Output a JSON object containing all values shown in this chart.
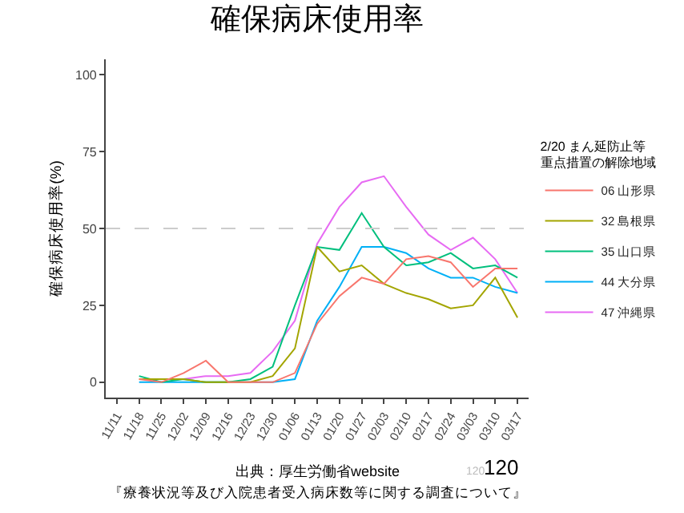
{
  "chart_data": {
    "type": "line",
    "title": "確保病床使用率",
    "ylabel": "確保病床使用率(%)",
    "legend_title": "2/20 まん延防止等重点措置の解除地域",
    "categories": [
      "11/11",
      "11/18",
      "11/25",
      "12/02",
      "12/09",
      "12/16",
      "12/23",
      "12/30",
      "01/06",
      "01/13",
      "01/20",
      "01/27",
      "02/03",
      "02/10",
      "02/17",
      "02/24",
      "03/03",
      "03/10",
      "03/17"
    ],
    "series": [
      {
        "name": "06 山形県",
        "color": "#f8766d",
        "values": [
          null,
          1,
          0,
          3,
          7,
          0,
          0,
          0,
          3,
          19,
          28,
          34,
          32,
          40,
          41,
          39,
          31,
          37,
          37
        ]
      },
      {
        "name": "32 島根県",
        "color": "#a3a500",
        "values": [
          null,
          1,
          1,
          1,
          0,
          0,
          0,
          2,
          11,
          44,
          36,
          38,
          32,
          29,
          27,
          24,
          25,
          34,
          21
        ]
      },
      {
        "name": "35 山口県",
        "color": "#00bf7d",
        "values": [
          null,
          2,
          0,
          1,
          0,
          0,
          1,
          5,
          25,
          44,
          43,
          55,
          44,
          38,
          39,
          42,
          37,
          38,
          34
        ]
      },
      {
        "name": "44 大分県",
        "color": "#00b0f6",
        "values": [
          null,
          0,
          0,
          0,
          0,
          0,
          0,
          0,
          1,
          20,
          31,
          44,
          44,
          42,
          37,
          34,
          34,
          31,
          29
        ]
      },
      {
        "name": "47 沖縄県",
        "color": "#e76bf3",
        "values": [
          null,
          null,
          null,
          1,
          2,
          2,
          3,
          10,
          20,
          45,
          57,
          65,
          67,
          57,
          48,
          43,
          47,
          40,
          29
        ]
      }
    ],
    "ylim": [
      -5,
      105
    ],
    "yticks": [
      0,
      25,
      50,
      75,
      100
    ],
    "grid": false,
    "legend": "right",
    "marker": "none",
    "line_style": "solid",
    "ref_lines": [
      {
        "axis": "y",
        "value": 50,
        "color": "#cccccc",
        "line_style": "dashed"
      }
    ],
    "annotations": [
      "出典：厚生労働省website",
      "『療養状況等及び入院患者受入病床数等に関する調査について』",
      "120",
      "120"
    ]
  }
}
